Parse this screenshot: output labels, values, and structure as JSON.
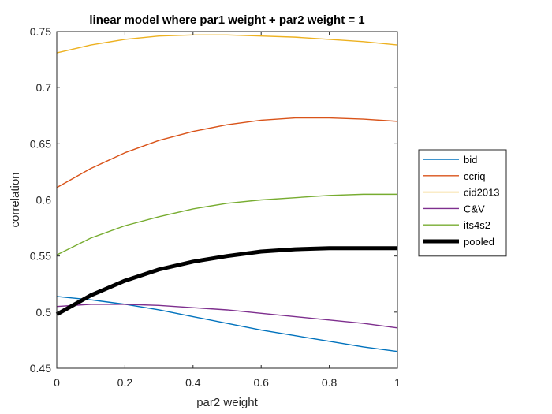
{
  "chart_data": {
    "type": "line",
    "title": "linear model where par1 weight + par2 weight = 1",
    "xlabel": "par2 weight",
    "ylabel": "correlation",
    "xlim": [
      0,
      1
    ],
    "ylim": [
      0.45,
      0.75
    ],
    "x_ticks": [
      0,
      0.2,
      0.4,
      0.6,
      0.8,
      1
    ],
    "x_tick_labels": [
      "0",
      "0.2",
      "0.4",
      "0.6",
      "0.8",
      "1"
    ],
    "y_ticks": [
      0.45,
      0.5,
      0.55,
      0.6,
      0.65,
      0.7,
      0.75
    ],
    "y_tick_labels": [
      "0.45",
      "0.5",
      "0.55",
      "0.6",
      "0.65",
      "0.7",
      "0.75"
    ],
    "grid": false,
    "legend_position": "outside-right",
    "x": [
      0,
      0.1,
      0.2,
      0.3,
      0.4,
      0.5,
      0.6,
      0.7,
      0.8,
      0.9,
      1.0
    ],
    "series": [
      {
        "name": "bid",
        "color": "#0072BD",
        "thick": false,
        "values": [
          0.514,
          0.511,
          0.507,
          0.502,
          0.496,
          0.49,
          0.484,
          0.479,
          0.474,
          0.469,
          0.465
        ]
      },
      {
        "name": "ccriq",
        "color": "#D95319",
        "thick": false,
        "values": [
          0.611,
          0.628,
          0.642,
          0.653,
          0.661,
          0.667,
          0.671,
          0.673,
          0.673,
          0.672,
          0.67
        ]
      },
      {
        "name": "cid2013",
        "color": "#EDB120",
        "thick": false,
        "values": [
          0.731,
          0.738,
          0.743,
          0.746,
          0.747,
          0.747,
          0.746,
          0.745,
          0.743,
          0.741,
          0.738
        ]
      },
      {
        "name": "C&V",
        "color": "#7E2F8E",
        "thick": false,
        "values": [
          0.505,
          0.507,
          0.507,
          0.506,
          0.504,
          0.502,
          0.499,
          0.496,
          0.493,
          0.49,
          0.486
        ]
      },
      {
        "name": "its4s2",
        "color": "#77AC30",
        "thick": false,
        "values": [
          0.551,
          0.566,
          0.577,
          0.585,
          0.592,
          0.597,
          0.6,
          0.602,
          0.604,
          0.605,
          0.605
        ]
      },
      {
        "name": "pooled",
        "color": "#000000",
        "thick": true,
        "values": [
          0.498,
          0.515,
          0.528,
          0.538,
          0.545,
          0.55,
          0.554,
          0.556,
          0.557,
          0.557,
          0.557
        ]
      }
    ]
  }
}
